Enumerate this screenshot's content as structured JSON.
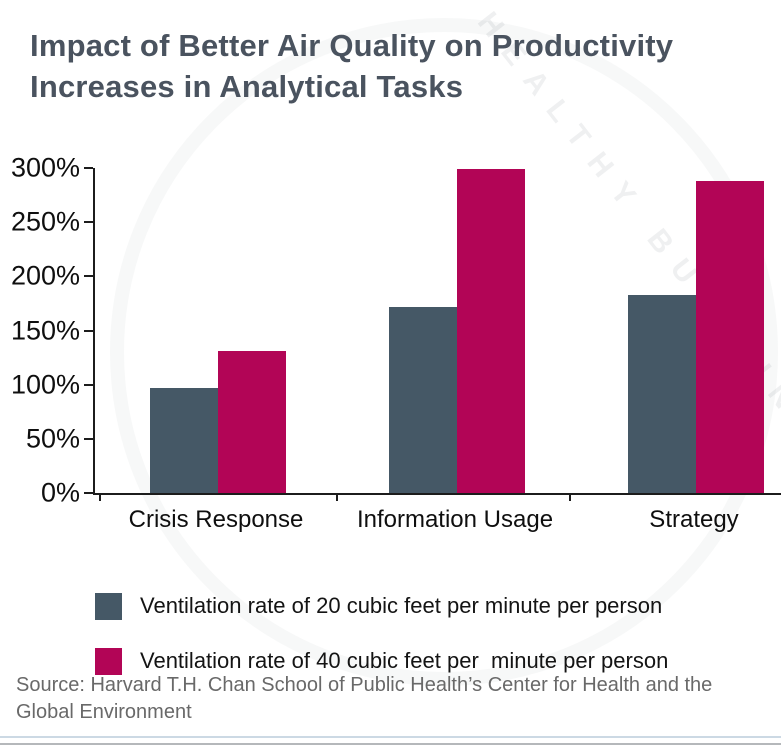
{
  "title": "Impact of Better Air Quality on Productivity Increases in Analytical Tasks",
  "watermark": "HEALTHY BUILDINGS",
  "source": "Source: Harvard T.H. Chan School of Public Health’s Center for Health and the Global Environment",
  "chart_data": {
    "type": "bar",
    "title": "Impact of Better Air Quality on Productivity Increases in Analytical Tasks",
    "categories": [
      "Crisis Response",
      "Information Usage",
      "Strategy"
    ],
    "series": [
      {
        "name": "Ventilation rate of 20 cubic feet per minute per person",
        "color": "#455866",
        "values": [
          97,
          172,
          183
        ]
      },
      {
        "name": "Ventilation rate of 40 cubic feet per  minute per person",
        "color": "#b20556",
        "values": [
          131,
          299,
          288
        ]
      }
    ],
    "xlabel": "",
    "ylabel": "",
    "ylim": [
      0,
      300
    ],
    "ytick_labels": [
      "0%",
      "50%",
      "100%",
      "150%",
      "200%",
      "250%",
      "300%"
    ],
    "grid": false,
    "legend_position": "bottom"
  }
}
